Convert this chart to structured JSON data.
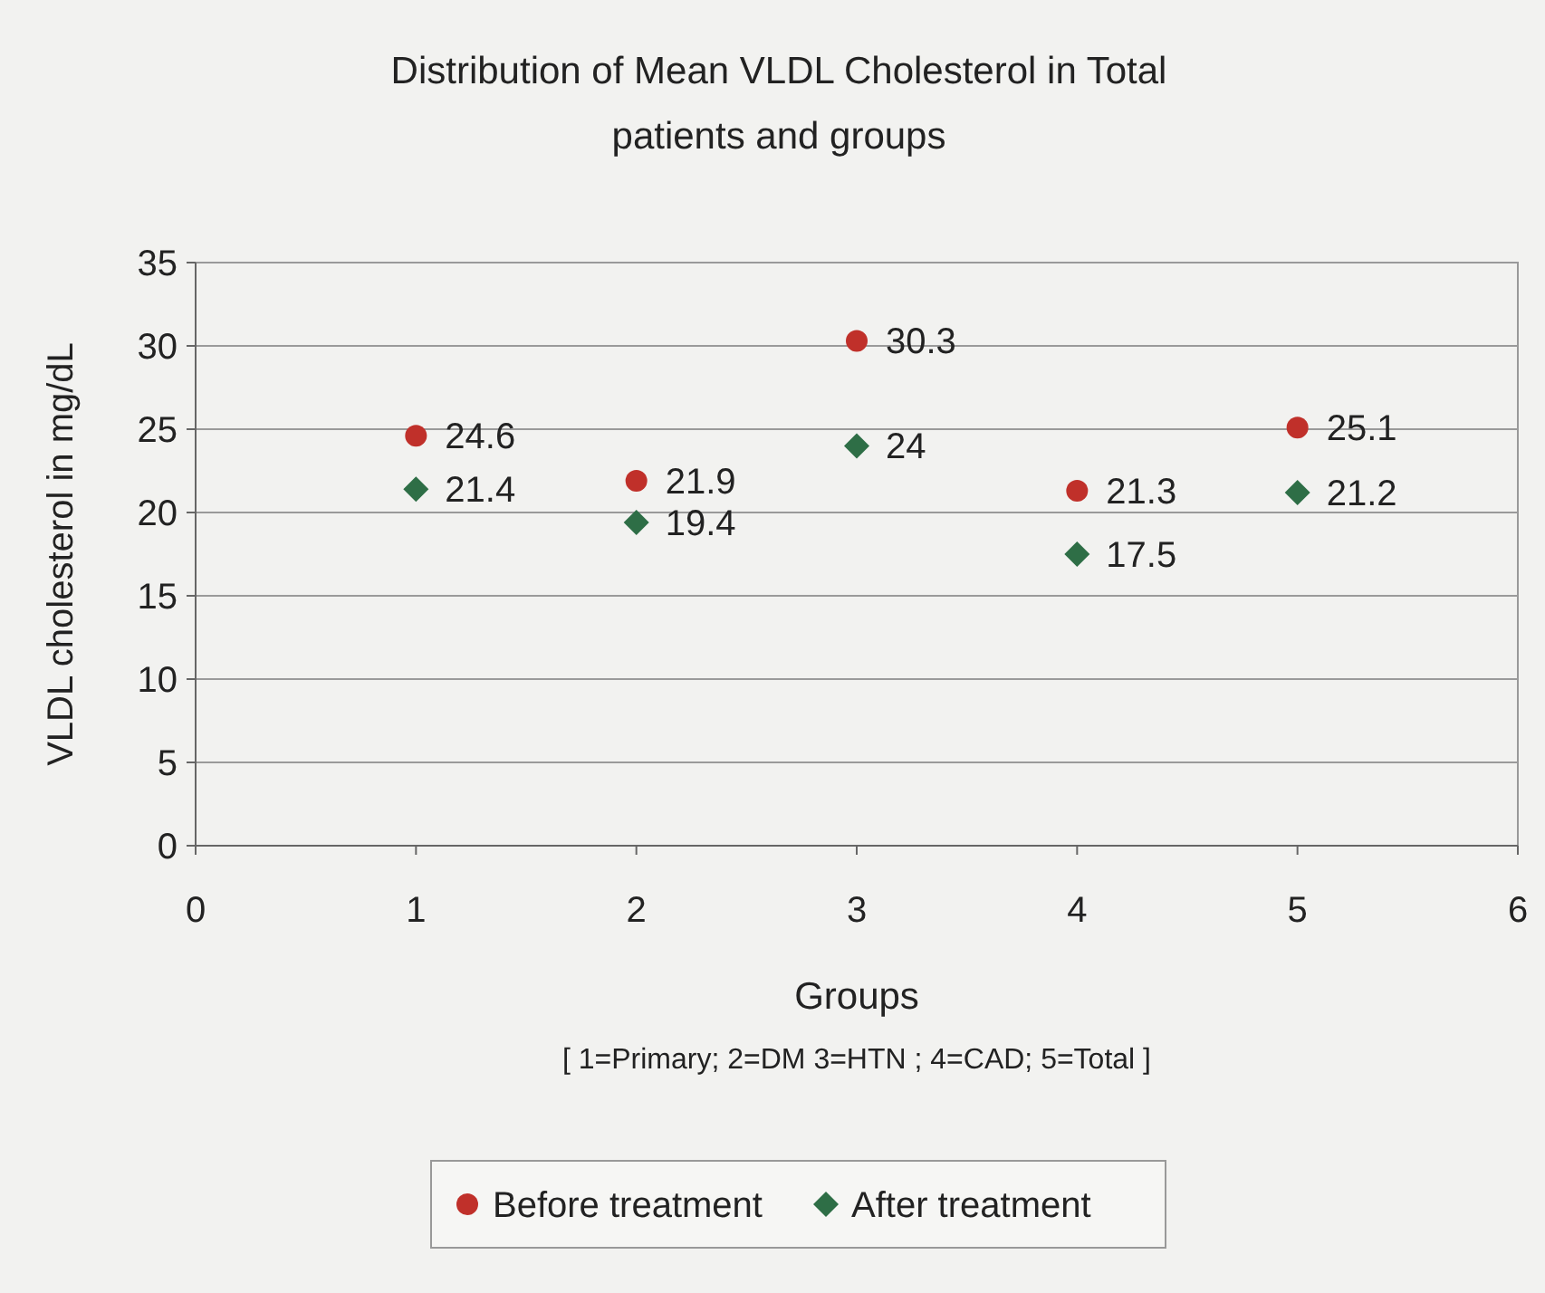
{
  "chart_data": {
    "type": "scatter",
    "title": "Distribution of Mean  VLDL Cholesterol in Total patients and groups",
    "xlabel": "Groups",
    "ylabel": "VLDL cholesterol in  mg/dL",
    "annotations": [
      "[ 1=Primary; 2=DM 3=HTN ; 4=CAD; 5=Total ]"
    ],
    "x": [
      1,
      2,
      3,
      4,
      5
    ],
    "xlim": [
      0,
      6
    ],
    "xticks": [
      0,
      1,
      2,
      3,
      4,
      5,
      6
    ],
    "ylim": [
      0,
      35
    ],
    "yticks": [
      0,
      5,
      10,
      15,
      20,
      25,
      30,
      35
    ],
    "grid": "y",
    "legend": "bottom",
    "data_labels": true,
    "series": [
      {
        "name": "Before treatment",
        "color": "#c0302a",
        "marker": "circle",
        "values": [
          24.6,
          21.9,
          30.3,
          21.3,
          25.1
        ]
      },
      {
        "name": "After treatment",
        "color": "#2e6e46",
        "marker": "diamond",
        "values": [
          21.4,
          19.4,
          24,
          17.5,
          21.2
        ]
      }
    ]
  }
}
